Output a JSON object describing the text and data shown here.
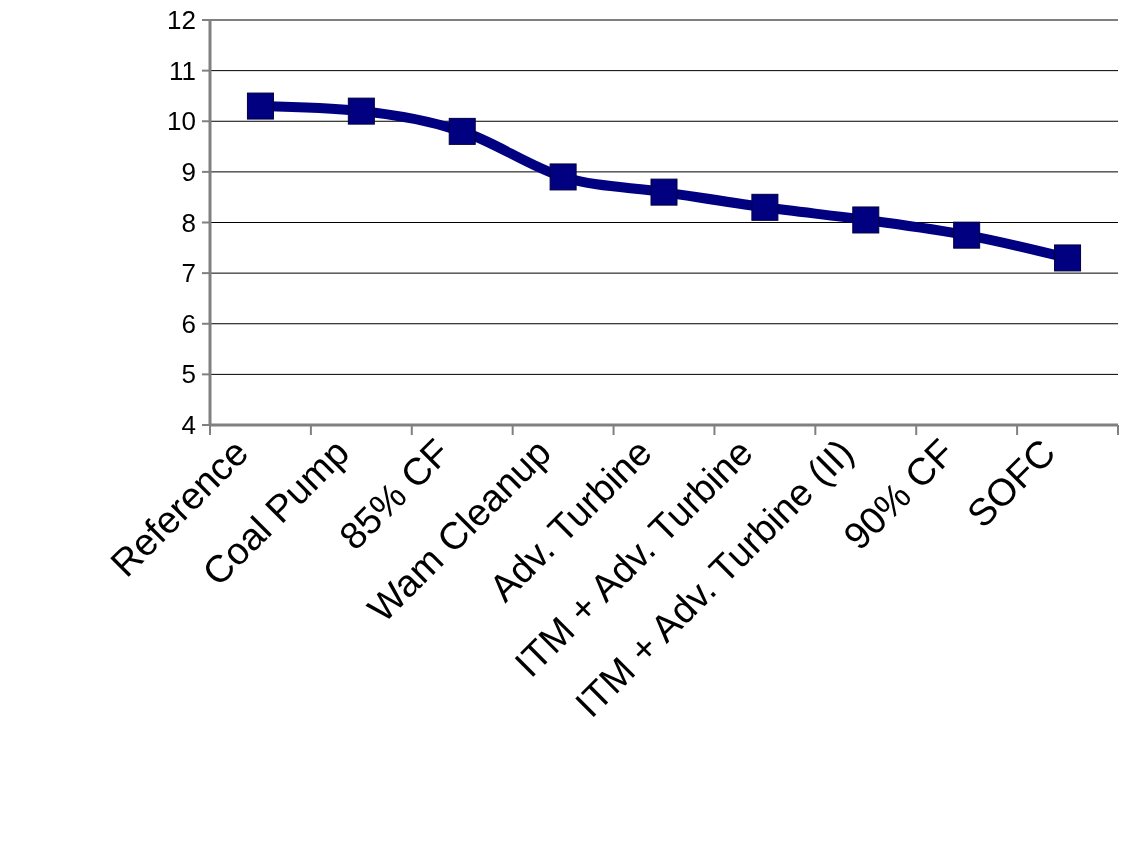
{
  "chart_data": {
    "type": "line",
    "categories": [
      "Reference",
      "Coal Pump",
      "85% CF",
      "Wam Cleanup",
      "Adv. Turbine",
      "ITM + Adv. Turbine",
      "ITM + Adv. Turbine (II)",
      "90% CF",
      "SOFC"
    ],
    "series": [
      {
        "color": "#000080",
        "values": [
          10.3,
          10.2,
          9.8,
          8.9,
          8.6,
          8.3,
          8.05,
          7.75,
          7.3
        ]
      }
    ],
    "ylim": [
      4,
      12
    ],
    "yticks": [
      4,
      5,
      6,
      7,
      8,
      9,
      10,
      11,
      12
    ],
    "grid": "y",
    "marker": "square",
    "line_style": "solid"
  }
}
